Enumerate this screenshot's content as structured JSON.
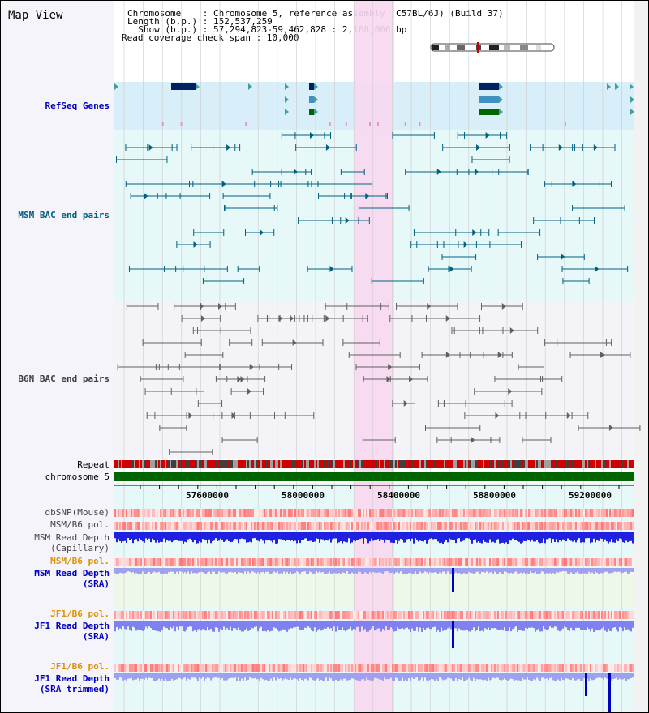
{
  "title": "Map View",
  "header": {
    "line1": "Chromosome    : Chromosome 5, reference assembly (C57BL/6J) (Build 37)",
    "line2": "Length (b.p.) : 152,537,259",
    "line3": "  Show (b.p.) : 57,294,823-59,462,828 : 2,168,006 bp",
    "line4": "Read coverage check span : 10,000"
  },
  "tracks": {
    "refseq": "RefSeq Genes",
    "msm_bac": "MSM BAC end pairs",
    "b6n_bac": "B6N BAC end pairs",
    "repeat": "Repeat",
    "chromosome": "chromosome 5",
    "dbsnp": "dbSNP(Mouse)",
    "msm_b6_pol_1": "MSM/B6 pol.",
    "msm_read_depth_cap_1": "MSM Read Depth",
    "msm_read_depth_cap_2": "(Capillary)",
    "msm_b6_pol_2": "MSM/B6 pol.",
    "msm_read_depth_sra_1": "MSM Read Depth",
    "msm_read_depth_sra_2": "(SRA)",
    "jf1_b6_pol_1": "JF1/B6 pol.",
    "jf1_read_depth_sra_1": "JF1 Read Depth",
    "jf1_read_depth_sra_2": "(SRA)",
    "jf1_b6_pol_2": "JF1/B6 pol.",
    "jf1_read_depth_trim_1": "JF1 Read Depth",
    "jf1_read_depth_trim_2": "(SRA trimmed)"
  },
  "axis": {
    "ticks": [
      "57600000",
      "58000000",
      "58400000",
      "58800000",
      "59200000"
    ]
  },
  "colors": {
    "refseq_label": "#0000c0",
    "msm_label": "#006080",
    "b6n_label": "#404040",
    "pol_orange": "#e09000",
    "depth_blue": "#0000c0",
    "highlight": "#f8d8f0",
    "chromosome_green": "#006400"
  }
}
